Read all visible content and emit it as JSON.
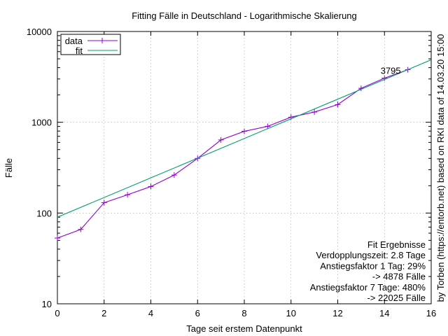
{
  "chart_data": {
    "type": "line",
    "title": "Fitting Fälle in Deutschland - Logarithmische Skalierung",
    "xlabel": "Tage seit erstem Datenpunkt",
    "ylabel": "Fälle",
    "xlim": [
      0,
      16
    ],
    "ylim": [
      10,
      10000
    ],
    "yscale": "log",
    "grid": true,
    "legend_position": "top-left",
    "x_ticks": [
      "0",
      "2",
      "4",
      "6",
      "8",
      "10",
      "12",
      "14",
      "16"
    ],
    "y_ticks": [
      "10",
      "100",
      "1000",
      "10000"
    ],
    "series": [
      {
        "name": "data",
        "color": "#9400d3",
        "marker": "+",
        "x": [
          0,
          1,
          2,
          3,
          4,
          5,
          6,
          7,
          8,
          9,
          10,
          11,
          12,
          13,
          14,
          15
        ],
        "y": [
          53,
          66,
          130,
          159,
          196,
          262,
          400,
          639,
          795,
          902,
          1139,
          1296,
          1567,
          2369,
          3062,
          3795
        ]
      },
      {
        "name": "fit",
        "color": "#009e73",
        "x": [
          0,
          16
        ],
        "y": [
          90,
          4878
        ]
      }
    ],
    "annotations": [
      {
        "text": "3795",
        "x": 15,
        "y": 3795
      }
    ],
    "fit_results": [
      "Fit Ergebnisse",
      "Verdopplungszeit: 2.8 Tage",
      "Anstiegsfaktor 1 Tag: 29%",
      "-> 4878 Fälle",
      "Anstiegsfaktor 7 Tage: 480%",
      "-> 22025 Fälle"
    ],
    "right_label": "by Torben (https://entorb.net) based on RKI data of 14.03.20 15:00"
  }
}
